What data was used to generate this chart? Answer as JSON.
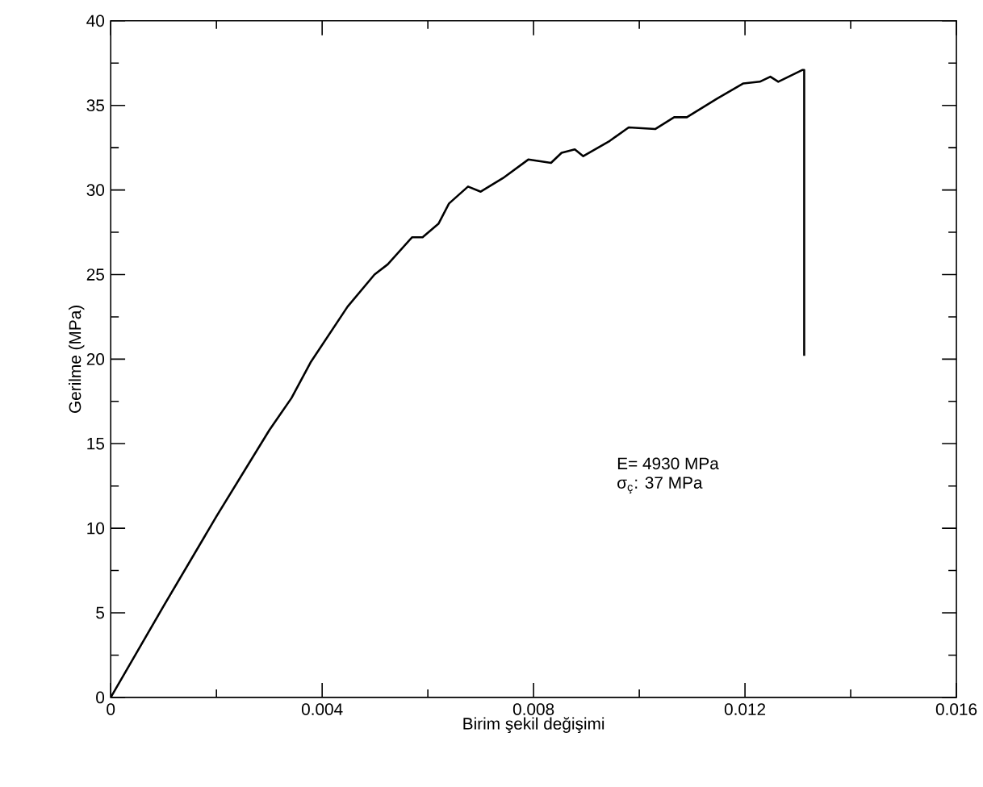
{
  "chart_data": {
    "type": "line",
    "xlabel": "Birim şekil değişimi",
    "ylabel": "Gerilme (MPa)",
    "xlim": [
      0,
      0.016
    ],
    "ylim": [
      0,
      40
    ],
    "xticks": [
      0,
      0.004,
      0.008,
      0.012,
      0.016
    ],
    "yticks": [
      0,
      5,
      10,
      15,
      20,
      25,
      30,
      35,
      40
    ],
    "grid": false,
    "marker": "none",
    "line_style": "solid",
    "annotations": [
      "E= 4930 MPa",
      "σ$_{ç}$: 37 MPa"
    ],
    "series": [
      {
        "color": "#000000",
        "x": [
          0,
          0.001,
          0.002,
          0.003,
          0.00342,
          0.00378,
          0.00448,
          0.00499,
          0.00524,
          0.0057,
          0.0059,
          0.0062,
          0.0064,
          0.00676,
          0.007,
          0.00742,
          0.0079,
          0.00833,
          0.00853,
          0.00878,
          0.00894,
          0.00944,
          0.0098,
          0.0103,
          0.01066,
          0.0109,
          0.01147,
          0.01197,
          0.01228,
          0.01248,
          0.01263,
          0.01309,
          0.01312,
          0.01312
        ],
        "values": [
          0,
          5.4,
          10.7,
          15.8,
          17.7,
          19.8,
          23.1,
          25.0,
          25.6,
          27.2,
          27.2,
          28.0,
          29.2,
          30.2,
          29.9,
          30.7,
          31.8,
          31.6,
          32.2,
          32.4,
          32.0,
          32.9,
          33.7,
          33.6,
          34.3,
          34.3,
          35.4,
          36.3,
          36.4,
          36.7,
          36.4,
          37.1,
          37.1,
          20.2
        ]
      }
    ]
  }
}
